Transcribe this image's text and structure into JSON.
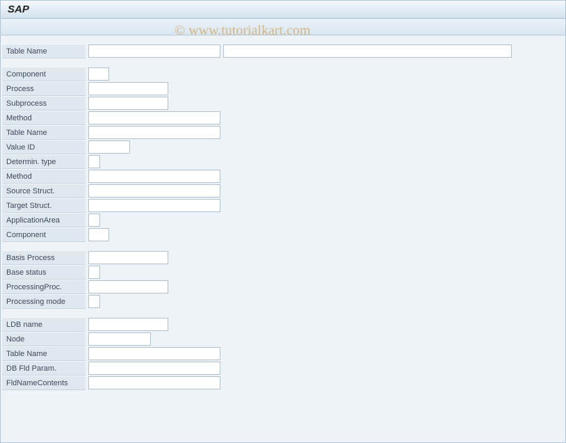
{
  "header": {
    "title": "SAP"
  },
  "watermark": "© www.tutorialkart.com",
  "section1": {
    "table_name": {
      "label": "Table Name",
      "value1": "",
      "value2": ""
    }
  },
  "section2": {
    "component": {
      "label": "Component",
      "value": ""
    },
    "process": {
      "label": "Process",
      "value": ""
    },
    "subprocess": {
      "label": "Subprocess",
      "value": ""
    },
    "method": {
      "label": "Method",
      "value": ""
    },
    "table_name": {
      "label": "Table Name",
      "value": ""
    },
    "value_id": {
      "label": "Value ID",
      "value": ""
    },
    "determin_type": {
      "label": "Determin. type",
      "value": ""
    },
    "method2": {
      "label": "Method",
      "value": ""
    },
    "source_struct": {
      "label": "Source Struct.",
      "value": ""
    },
    "target_struct": {
      "label": "Target Struct.",
      "value": ""
    },
    "application_area": {
      "label": "ApplicationArea",
      "value": ""
    },
    "component2": {
      "label": "Component",
      "value": ""
    }
  },
  "section3": {
    "basis_process": {
      "label": "Basis Process",
      "value": ""
    },
    "base_status": {
      "label": "Base status",
      "value": ""
    },
    "processing_proc": {
      "label": "ProcessingProc.",
      "value": ""
    },
    "processing_mode": {
      "label": "Processing mode",
      "value": ""
    }
  },
  "section4": {
    "ldb_name": {
      "label": "LDB name",
      "value": ""
    },
    "node": {
      "label": "Node",
      "value": ""
    },
    "table_name": {
      "label": "Table Name",
      "value": ""
    },
    "db_fld_param": {
      "label": "DB Fld Param.",
      "value": ""
    },
    "fld_name_contents": {
      "label": "FldNameContents",
      "value": ""
    }
  },
  "colors": {
    "title_bg_start": "#f5f9fc",
    "title_bg_end": "#d5e2ed",
    "toolbar_bg_start": "#eaf2f8",
    "toolbar_bg_end": "#d9e6f0",
    "content_bg": "#eef3f7",
    "label_bg": "#e0e8ef",
    "input_border": "#b0c0cc",
    "border": "#b0c4d8",
    "watermark": "#cc8820"
  }
}
